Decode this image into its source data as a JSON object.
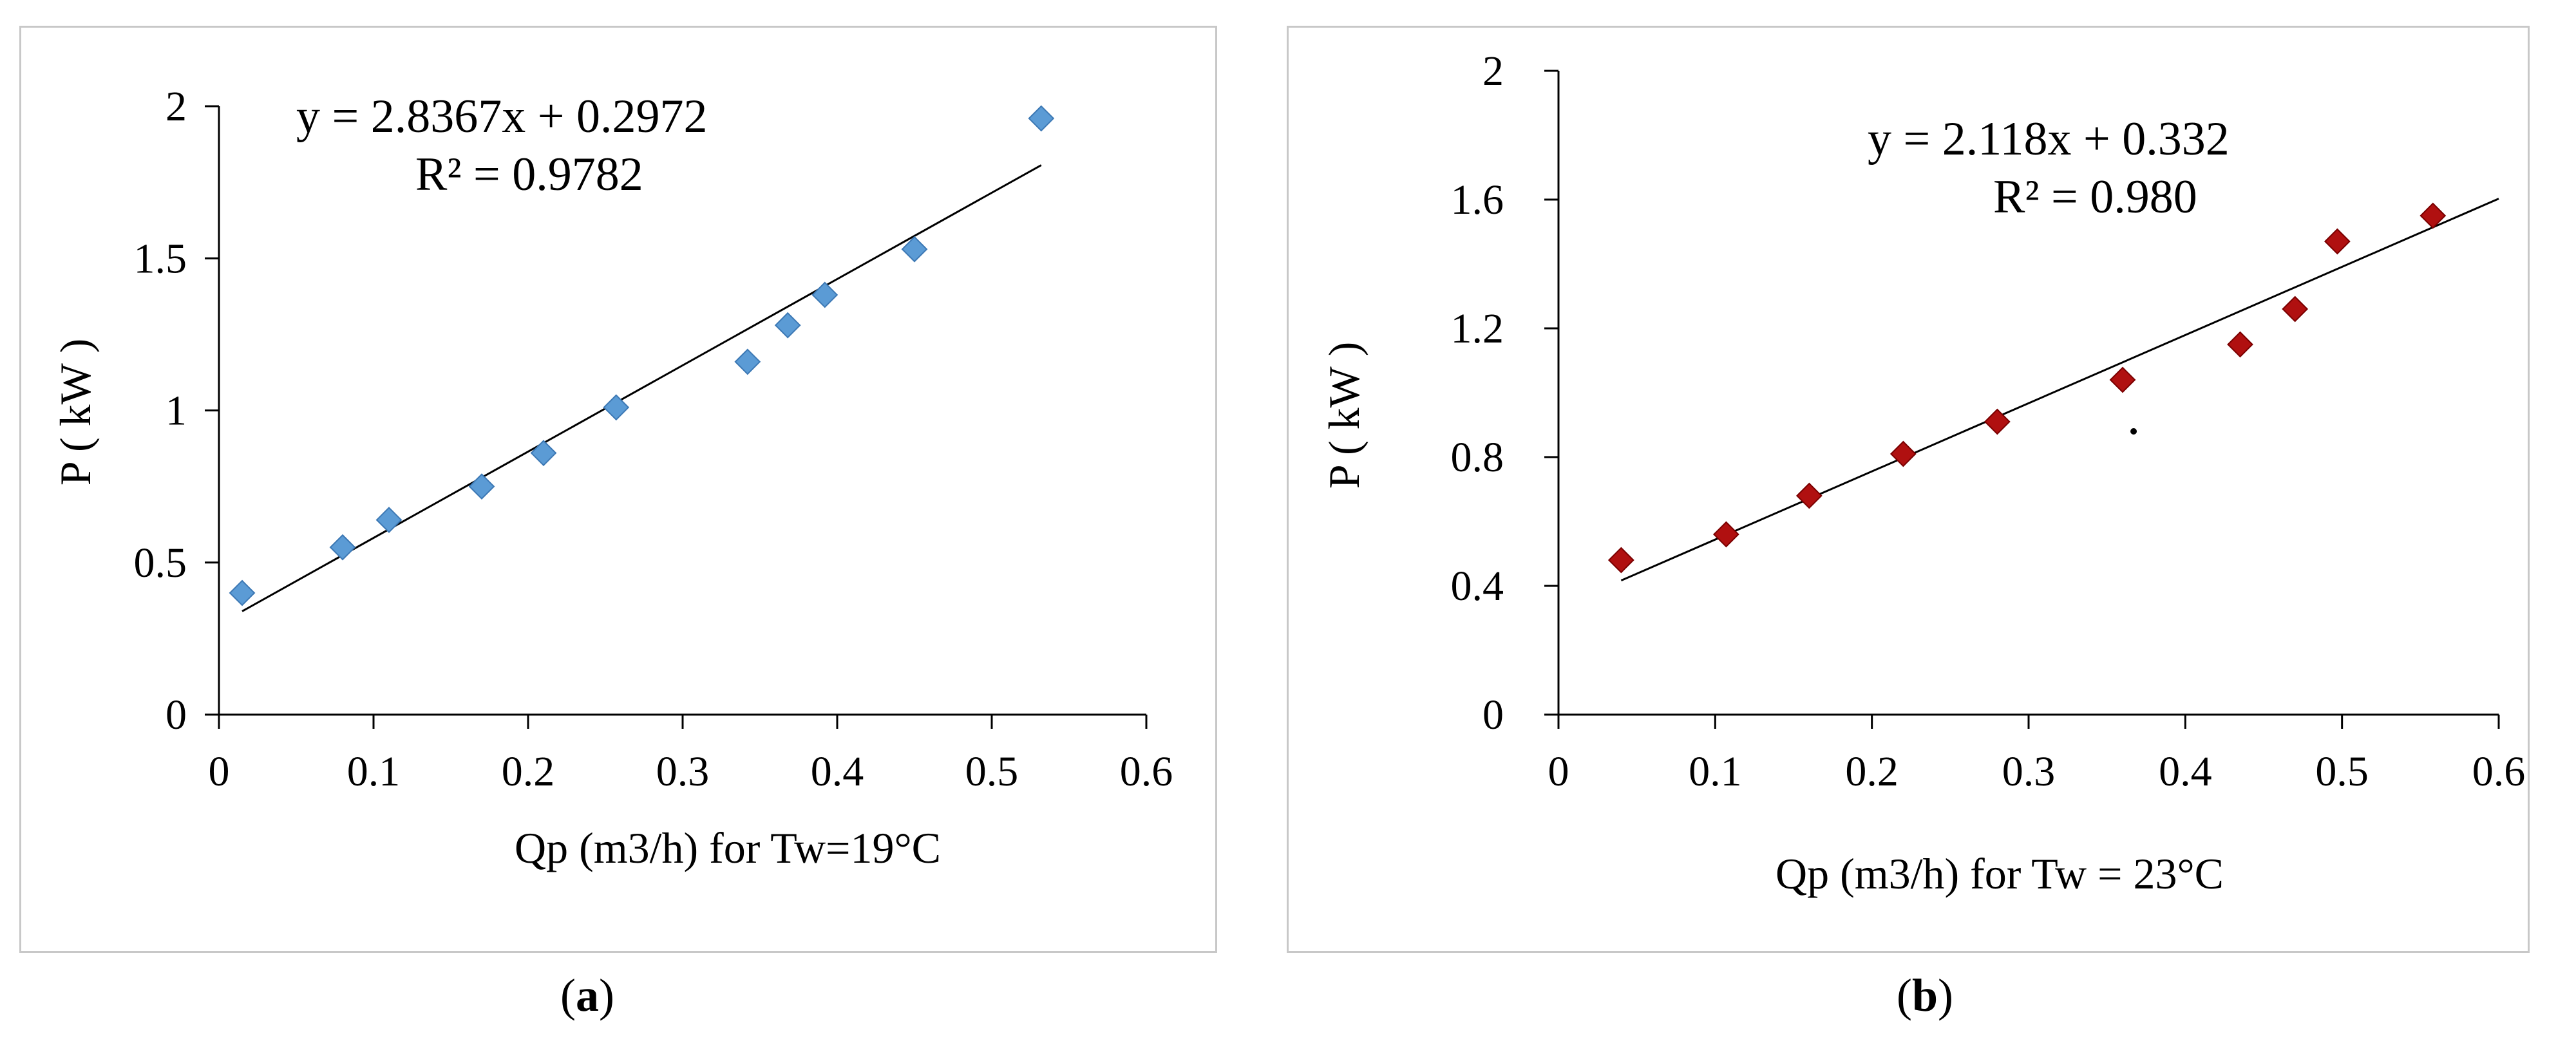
{
  "chart_data": [
    {
      "type": "scatter",
      "panel": "a",
      "caption_letter": "a",
      "xlabel": "Qp (m3/h) for Tw=19°C",
      "ylabel": "P ( kW )",
      "xlim": [
        0,
        0.6
      ],
      "ylim": [
        0,
        2
      ],
      "xticks": [
        0,
        0.1,
        0.2,
        0.3,
        0.4,
        0.5,
        0.6
      ],
      "xtick_labels": [
        "0",
        "0.1",
        "0.2",
        "0.3",
        "0.4",
        "0.5",
        "0.6"
      ],
      "yticks": [
        0,
        0.5,
        1,
        1.5,
        2
      ],
      "ytick_labels": [
        "0",
        "0.5",
        "1",
        "1.5",
        "2"
      ],
      "marker": "diamond",
      "marker_color": "#5b9bd5",
      "marker_edge": "#3c78b4",
      "points": [
        {
          "x": 0.015,
          "y": 0.4
        },
        {
          "x": 0.08,
          "y": 0.55
        },
        {
          "x": 0.11,
          "y": 0.64
        },
        {
          "x": 0.17,
          "y": 0.75
        },
        {
          "x": 0.21,
          "y": 0.86
        },
        {
          "x": 0.257,
          "y": 1.01
        },
        {
          "x": 0.342,
          "y": 1.16
        },
        {
          "x": 0.368,
          "y": 1.28
        },
        {
          "x": 0.392,
          "y": 1.38
        },
        {
          "x": 0.45,
          "y": 1.53
        },
        {
          "x": 0.532,
          "y": 1.96
        }
      ],
      "trendline": {
        "slope": 2.8367,
        "intercept": 0.2972,
        "x_start": 0.015,
        "x_end": 0.532
      },
      "equation_line1": "y = 2.8367x + 0.2972",
      "equation_line2": "R² = 0.9782"
    },
    {
      "type": "scatter",
      "panel": "b",
      "caption_letter": "b",
      "xlabel": "Qp (m3/h) for Tw = 23°C",
      "ylabel": "P ( kW )",
      "xlim": [
        0,
        0.6
      ],
      "ylim": [
        0,
        2
      ],
      "xticks": [
        0,
        0.1,
        0.2,
        0.3,
        0.4,
        0.5,
        0.6
      ],
      "xtick_labels": [
        "0",
        "0.1",
        "0.2",
        "0.3",
        "0.4",
        "0.5",
        "0.6"
      ],
      "yticks": [
        0,
        0.4,
        0.8,
        1.2,
        1.6,
        2
      ],
      "ytick_labels": [
        "0",
        "0.4",
        "0.8",
        "1.2",
        "1.6",
        "2"
      ],
      "marker": "diamond",
      "marker_color": "#b01010",
      "marker_edge": "#7a0000",
      "points": [
        {
          "x": 0.04,
          "y": 0.48
        },
        {
          "x": 0.107,
          "y": 0.56
        },
        {
          "x": 0.16,
          "y": 0.68
        },
        {
          "x": 0.22,
          "y": 0.81
        },
        {
          "x": 0.28,
          "y": 0.91
        },
        {
          "x": 0.36,
          "y": 1.04
        },
        {
          "x": 0.435,
          "y": 1.15
        },
        {
          "x": 0.47,
          "y": 1.26
        },
        {
          "x": 0.497,
          "y": 1.47
        },
        {
          "x": 0.558,
          "y": 1.55
        }
      ],
      "stray_dot": {
        "x": 0.367,
        "y": 0.88
      },
      "trendline": {
        "slope": 2.118,
        "intercept": 0.332,
        "x_start": 0.04,
        "x_end": 0.6
      },
      "equation_line1": "y = 2.118x + 0.332",
      "equation_line2": "R² = 0.980"
    }
  ]
}
